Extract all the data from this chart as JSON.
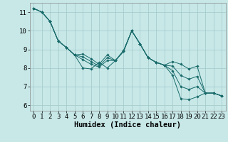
{
  "bg_color": "#c8e8e8",
  "grid_color": "#a0c8c8",
  "line_color": "#1a6b6b",
  "xlabel": "Humidex (Indice chaleur)",
  "xlabel_fontsize": 7.5,
  "tick_fontsize": 6.5,
  "ylim": [
    5.7,
    11.5
  ],
  "xlim": [
    -0.5,
    23.5
  ],
  "yticks": [
    6,
    7,
    8,
    9,
    10,
    11
  ],
  "xticks": [
    0,
    1,
    2,
    3,
    4,
    5,
    6,
    7,
    8,
    9,
    10,
    11,
    12,
    13,
    14,
    15,
    16,
    17,
    18,
    19,
    20,
    21,
    22,
    23
  ],
  "series": [
    [
      11.2,
      11.0,
      10.5,
      9.45,
      9.1,
      8.7,
      8.0,
      7.95,
      8.3,
      8.0,
      8.4,
      8.95,
      10.0,
      9.3,
      8.55,
      8.3,
      8.15,
      7.6,
      6.35,
      6.3,
      6.45,
      6.65,
      6.65,
      6.5
    ],
    [
      11.2,
      11.0,
      10.5,
      9.45,
      9.1,
      8.7,
      8.45,
      8.2,
      8.05,
      8.4,
      8.4,
      8.9,
      10.0,
      9.3,
      8.55,
      8.3,
      8.15,
      7.85,
      7.0,
      6.85,
      7.0,
      6.65,
      6.65,
      6.5
    ],
    [
      11.2,
      11.0,
      10.5,
      9.45,
      9.1,
      8.7,
      8.6,
      8.35,
      8.1,
      8.55,
      8.4,
      8.9,
      10.0,
      9.3,
      8.55,
      8.3,
      8.15,
      8.1,
      7.6,
      7.4,
      7.55,
      6.65,
      6.65,
      6.5
    ],
    [
      11.2,
      11.0,
      10.5,
      9.45,
      9.1,
      8.7,
      8.75,
      8.5,
      8.2,
      8.7,
      8.4,
      8.9,
      10.0,
      9.3,
      8.55,
      8.3,
      8.15,
      8.35,
      8.2,
      7.95,
      8.1,
      6.65,
      6.65,
      6.5
    ]
  ]
}
